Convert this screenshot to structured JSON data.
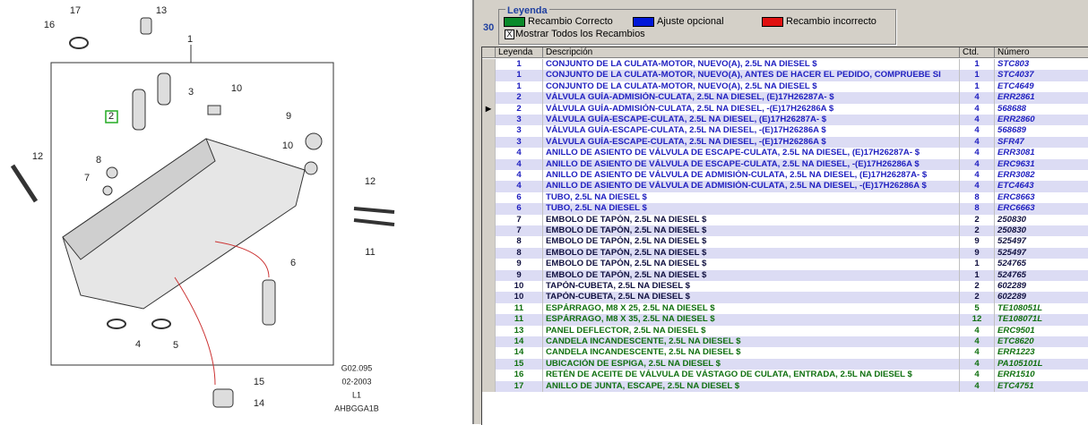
{
  "diagram": {
    "callouts": [
      "17",
      "13",
      "16",
      "1",
      "3",
      "10",
      "2",
      "9",
      "10",
      "12",
      "8",
      "7",
      "12",
      "11",
      "6",
      "4",
      "5",
      "15",
      "14"
    ],
    "footer": [
      "G02.095",
      "02-2003",
      "L1",
      "AHBGGA1B"
    ]
  },
  "legend": {
    "title": "Leyenda",
    "count": "30",
    "items": [
      {
        "label": "Recambio Correcto",
        "color": "#0a8a2a"
      },
      {
        "label": "Ajuste opcional",
        "color": "#0018d8"
      },
      {
        "label": "Recambio incorrecto",
        "color": "#e01010"
      }
    ],
    "checkbox": "Mostrar Todos los Recambios"
  },
  "table": {
    "headers": [
      "Leyenda",
      "Descripción",
      "Ctd.",
      "Número"
    ],
    "rows": [
      {
        "cells": [
          "1",
          "CONJUNTO DE LA CULATA-MOTOR, NUEVO(A), 2.5L NA DIESEL $",
          "1",
          "STC803"
        ],
        "color": "#2020c0"
      },
      {
        "cells": [
          "1",
          "CONJUNTO DE LA CULATA-MOTOR, NUEVO(A), ANTES DE HACER EL PEDIDO, COMPRUEBE SI",
          "1",
          "STC4037"
        ],
        "color": "#2020c0"
      },
      {
        "cells": [
          "1",
          "CONJUNTO DE LA CULATA-MOTOR, NUEVO(A), 2.5L NA DIESEL $",
          "1",
          "ETC4649"
        ],
        "color": "#2020c0"
      },
      {
        "cells": [
          "2",
          "VÁLVULA GUÍA-ADMISIÓN-CULATA, 2.5L NA DIESEL, (E)17H26287A- $",
          "4",
          "ERR2861"
        ],
        "color": "#2020c0"
      },
      {
        "cells": [
          "2",
          "VÁLVULA GUÍA-ADMISIÓN-CULATA, 2.5L NA DIESEL, -(E)17H26286A $",
          "4",
          "568688"
        ],
        "color": "#2020c0"
      },
      {
        "cells": [
          "3",
          "VÁLVULA GUÍA-ESCAPE-CULATA, 2.5L NA DIESEL, (E)17H26287A- $",
          "4",
          "ERR2860"
        ],
        "color": "#2020c0"
      },
      {
        "cells": [
          "3",
          "VÁLVULA GUÍA-ESCAPE-CULATA, 2.5L NA DIESEL, -(E)17H26286A $",
          "4",
          "568689"
        ],
        "color": "#2020c0"
      },
      {
        "cells": [
          "3",
          "VÁLVULA GUÍA-ESCAPE-CULATA, 2.5L NA DIESEL, -(E)17H26286A $",
          "4",
          "SFR47"
        ],
        "color": "#2020c0"
      },
      {
        "cells": [
          "4",
          "ANILLO DE ASIENTO DE VÁLVULA DE ESCAPE-CULATA, 2.5L NA DIESEL, (E)17H26287A- $",
          "4",
          "ERR3081"
        ],
        "color": "#2020c0"
      },
      {
        "cells": [
          "4",
          "ANILLO DE ASIENTO DE VÁLVULA DE ESCAPE-CULATA, 2.5L NA DIESEL, -(E)17H26286A $",
          "4",
          "ERC9631"
        ],
        "color": "#2020c0"
      },
      {
        "cells": [
          "4",
          "ANILLO DE ASIENTO DE VÁLVULA DE ADMISIÓN-CULATA, 2.5L NA DIESEL, (E)17H26287A- $",
          "4",
          "ERR3082"
        ],
        "color": "#2020c0"
      },
      {
        "cells": [
          "4",
          "ANILLO DE ASIENTO DE VÁLVULA DE ADMISIÓN-CULATA, 2.5L NA DIESEL, -(E)17H26286A $",
          "4",
          "ETC4643"
        ],
        "color": "#2020c0"
      },
      {
        "cells": [
          "6",
          "TUBO, 2.5L NA DIESEL $",
          "8",
          "ERC8663"
        ],
        "color": "#2020c0"
      },
      {
        "cells": [
          "6",
          "TUBO, 2.5L NA DIESEL $",
          "8",
          "ERC6663"
        ],
        "color": "#2020c0"
      },
      {
        "cells": [
          "7",
          "EMBOLO DE TAPÓN, 2.5L NA DIESEL $",
          "2",
          "250830"
        ],
        "color": "#101040"
      },
      {
        "cells": [
          "7",
          "EMBOLO DE TAPÓN, 2.5L NA DIESEL $",
          "2",
          "250830"
        ],
        "color": "#101040"
      },
      {
        "cells": [
          "8",
          "EMBOLO DE TAPÓN, 2.5L NA DIESEL $",
          "9",
          "525497"
        ],
        "color": "#101040"
      },
      {
        "cells": [
          "8",
          "EMBOLO DE TAPÓN, 2.5L NA DIESEL $",
          "9",
          "525497"
        ],
        "color": "#101040"
      },
      {
        "cells": [
          "9",
          "EMBOLO DE TAPÓN, 2.5L NA DIESEL $",
          "1",
          "524765"
        ],
        "color": "#101040"
      },
      {
        "cells": [
          "9",
          "EMBOLO DE TAPÓN, 2.5L NA DIESEL $",
          "1",
          "524765"
        ],
        "color": "#101040"
      },
      {
        "cells": [
          "10",
          "TAPÓN-CUBETA, 2.5L NA DIESEL $",
          "2",
          "602289"
        ],
        "color": "#101040"
      },
      {
        "cells": [
          "10",
          "TAPÓN-CUBETA, 2.5L NA DIESEL $",
          "2",
          "602289"
        ],
        "color": "#101040"
      },
      {
        "cells": [
          "11",
          "ESPÁRRAGO, M8 X 25, 2.5L NA DIESEL $",
          "5",
          "TE108051L"
        ],
        "color": "#107010"
      },
      {
        "cells": [
          "11",
          "ESPÁRRAGO, M8 X 35, 2.5L NA DIESEL $",
          "12",
          "TE108071L"
        ],
        "color": "#107010"
      },
      {
        "cells": [
          "13",
          "PANEL DEFLECTOR, 2.5L NA DIESEL $",
          "4",
          "ERC9501"
        ],
        "color": "#107010"
      },
      {
        "cells": [
          "14",
          "CANDELA INCANDESCENTE, 2.5L NA DIESEL $",
          "4",
          "ETC8620"
        ],
        "color": "#107010"
      },
      {
        "cells": [
          "14",
          "CANDELA INCANDESCENTE, 2.5L NA DIESEL $",
          "4",
          "ERR1223"
        ],
        "color": "#107010"
      },
      {
        "cells": [
          "15",
          "UBICACIÓN DE ESPIGA, 2.5L NA DIESEL $",
          "4",
          "PA105101L"
        ],
        "color": "#107010"
      },
      {
        "cells": [
          "16",
          "RETÉN DE ACEITE DE VÁLVULA DE VÁSTAGO DE CULATA, ENTRADA, 2.5L NA DIESEL $",
          "4",
          "ERR1510"
        ],
        "color": "#107010"
      },
      {
        "cells": [
          "17",
          "ANILLO DE JUNTA, ESCAPE, 2.5L NA DIESEL $",
          "4",
          "ETC4751"
        ],
        "color": "#107010"
      }
    ]
  }
}
